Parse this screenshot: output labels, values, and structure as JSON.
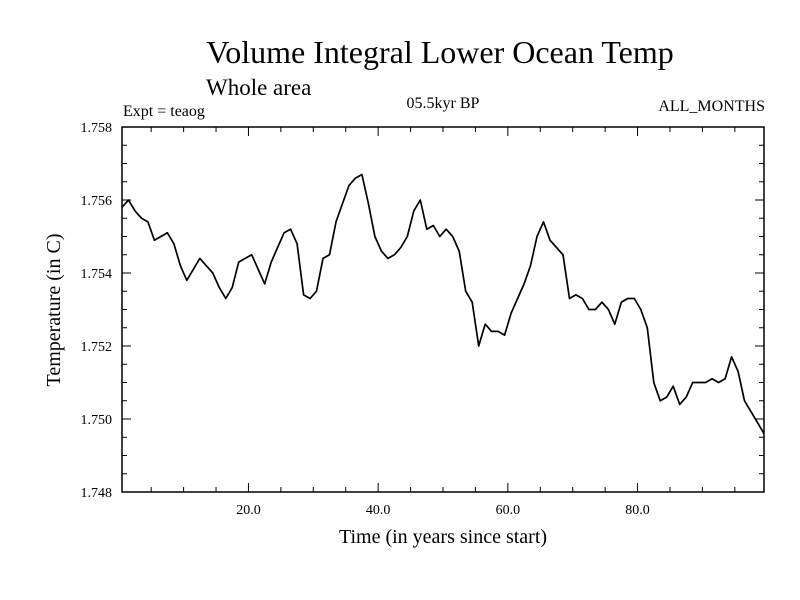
{
  "chart_data": {
    "type": "line",
    "title": "Volume Integral Lower Ocean Temp",
    "subtitle": "Whole area",
    "annotations": {
      "left": "Expt = teaog",
      "center": "05.5kyr BP",
      "right": "ALL_MONTHS"
    },
    "xlabel": "Time (in years since start)",
    "ylabel": "Temperature (in C)",
    "xlim": [
      0.5,
      99.5
    ],
    "ylim": [
      1.748,
      1.758
    ],
    "xticks": [
      20,
      40,
      60,
      80
    ],
    "xtick_labels": [
      "20.0",
      "40.0",
      "60.0",
      "80.0"
    ],
    "yticks": [
      1.748,
      1.75,
      1.752,
      1.754,
      1.756,
      1.758
    ],
    "ytick_labels": [
      "1.748",
      "1.750",
      "1.752",
      "1.754",
      "1.756",
      "1.758"
    ],
    "grid": false,
    "series": [
      {
        "name": "Volume Integral Lower Ocean Temp",
        "color": "#000000",
        "x": [
          0.5,
          1.5,
          2.5,
          3.5,
          4.5,
          5.5,
          6.5,
          7.5,
          8.5,
          9.5,
          10.5,
          11.5,
          12.5,
          13.5,
          14.5,
          15.5,
          16.5,
          17.5,
          18.5,
          19.5,
          20.5,
          21.5,
          22.5,
          23.5,
          24.5,
          25.5,
          26.5,
          27.5,
          28.5,
          29.5,
          30.5,
          31.5,
          32.5,
          33.5,
          34.5,
          35.5,
          36.5,
          37.5,
          38.5,
          39.5,
          40.5,
          41.5,
          42.5,
          43.5,
          44.5,
          45.5,
          46.5,
          47.5,
          48.5,
          49.5,
          50.5,
          51.5,
          52.5,
          53.5,
          54.5,
          55.5,
          56.5,
          57.5,
          58.5,
          59.5,
          60.5,
          61.5,
          62.5,
          63.5,
          64.5,
          65.5,
          66.5,
          67.5,
          68.5,
          69.5,
          70.5,
          71.5,
          72.5,
          73.5,
          74.5,
          75.5,
          76.5,
          77.5,
          78.5,
          79.5,
          80.5,
          81.5,
          82.5,
          83.5,
          84.5,
          85.5,
          86.5,
          87.5,
          88.5,
          89.5,
          90.5,
          91.5,
          92.5,
          93.5,
          94.5,
          95.5,
          96.5,
          97.5,
          98.5,
          99.5
        ],
        "values": [
          1.7558,
          1.756,
          1.7557,
          1.7555,
          1.7554,
          1.7549,
          1.755,
          1.7551,
          1.7548,
          1.7542,
          1.7538,
          1.7541,
          1.7544,
          1.7542,
          1.754,
          1.7536,
          1.7533,
          1.7536,
          1.7543,
          1.7544,
          1.7545,
          1.7541,
          1.7537,
          1.7543,
          1.7547,
          1.7551,
          1.7552,
          1.7548,
          1.7534,
          1.7533,
          1.7535,
          1.7544,
          1.7545,
          1.7554,
          1.7559,
          1.7564,
          1.7566,
          1.7567,
          1.7559,
          1.755,
          1.7546,
          1.7544,
          1.7545,
          1.7547,
          1.755,
          1.7557,
          1.756,
          1.7552,
          1.7553,
          1.755,
          1.7552,
          1.755,
          1.7546,
          1.7535,
          1.7532,
          1.752,
          1.7526,
          1.7524,
          1.7524,
          1.7523,
          1.7529,
          1.7533,
          1.7537,
          1.7542,
          1.755,
          1.7554,
          1.7549,
          1.7547,
          1.7545,
          1.7533,
          1.7534,
          1.7533,
          1.753,
          1.753,
          1.7532,
          1.753,
          1.7526,
          1.7532,
          1.7533,
          1.7533,
          1.753,
          1.7525,
          1.751,
          1.7505,
          1.7506,
          1.7509,
          1.7504,
          1.7506,
          1.751,
          1.751,
          1.751,
          1.7511,
          1.751,
          1.7511,
          1.7517,
          1.7513,
          1.7505,
          1.7502,
          1.7499,
          1.7496
        ]
      }
    ]
  }
}
